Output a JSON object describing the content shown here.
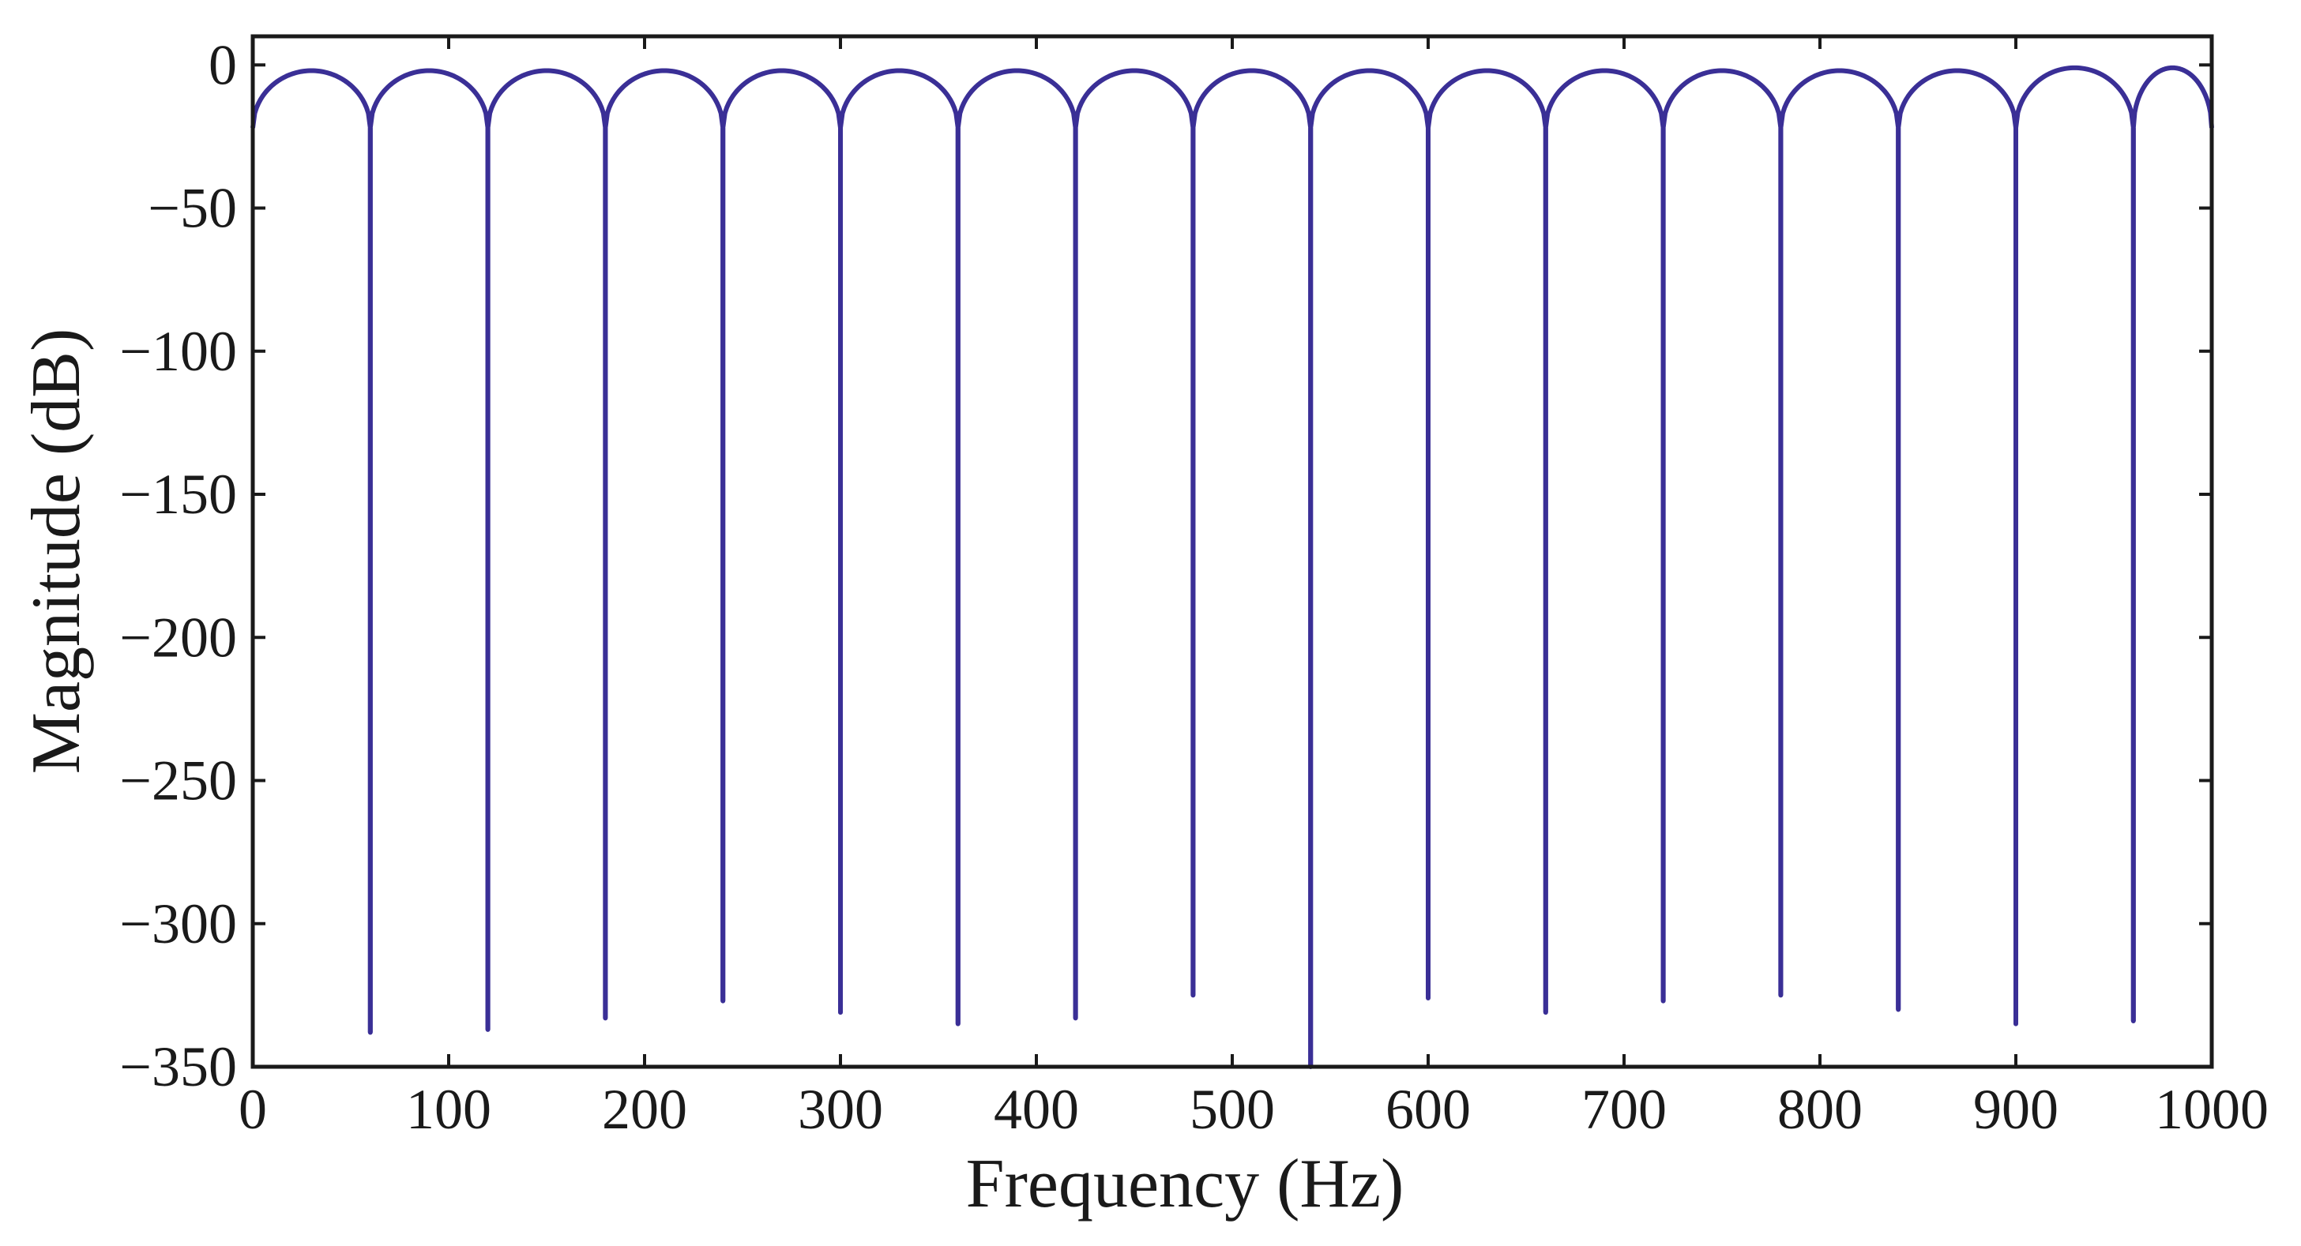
{
  "chart_data": {
    "type": "line",
    "title": "",
    "xlabel": "Frequency (Hz)",
    "ylabel": "Magnitude (dB)",
    "xlim": [
      0,
      1000
    ],
    "ylim": [
      -350,
      10
    ],
    "x_ticks": [
      0,
      100,
      200,
      300,
      400,
      500,
      600,
      700,
      800,
      900,
      1000
    ],
    "x_tick_labels": [
      "0",
      "100",
      "200",
      "300",
      "400",
      "500",
      "600",
      "700",
      "800",
      "900",
      "1000"
    ],
    "y_ticks": [
      0,
      -50,
      -100,
      -150,
      -200,
      -250,
      -300,
      -350
    ],
    "y_tick_labels": [
      "0",
      "−50",
      "−100",
      "−150",
      "−200",
      "−250",
      "−300",
      "−350"
    ],
    "grid": false,
    "legend": "none",
    "series": [
      {
        "line_color": "#3a2f96",
        "lobe_edge_magnitude": -22,
        "peak_magnitude": [
          -2,
          -2,
          -2,
          -2,
          -2,
          -2,
          -2,
          -2,
          -2,
          -2,
          -2,
          -2,
          -2,
          -2,
          -2,
          -1,
          -1,
          0
        ],
        "notches": [
          {
            "x": 60,
            "y": -338
          },
          {
            "x": 120,
            "y": -337
          },
          {
            "x": 180,
            "y": -333
          },
          {
            "x": 240,
            "y": -327
          },
          {
            "x": 300,
            "y": -331
          },
          {
            "x": 360,
            "y": -335
          },
          {
            "x": 420,
            "y": -333
          },
          {
            "x": 480,
            "y": -325
          },
          {
            "x": 540,
            "y": -350
          },
          {
            "x": 600,
            "y": -326
          },
          {
            "x": 660,
            "y": -331
          },
          {
            "x": 720,
            "y": -327
          },
          {
            "x": 780,
            "y": -325
          },
          {
            "x": 840,
            "y": -330
          },
          {
            "x": 900,
            "y": -335
          },
          {
            "x": 960,
            "y": -334
          }
        ]
      }
    ]
  }
}
